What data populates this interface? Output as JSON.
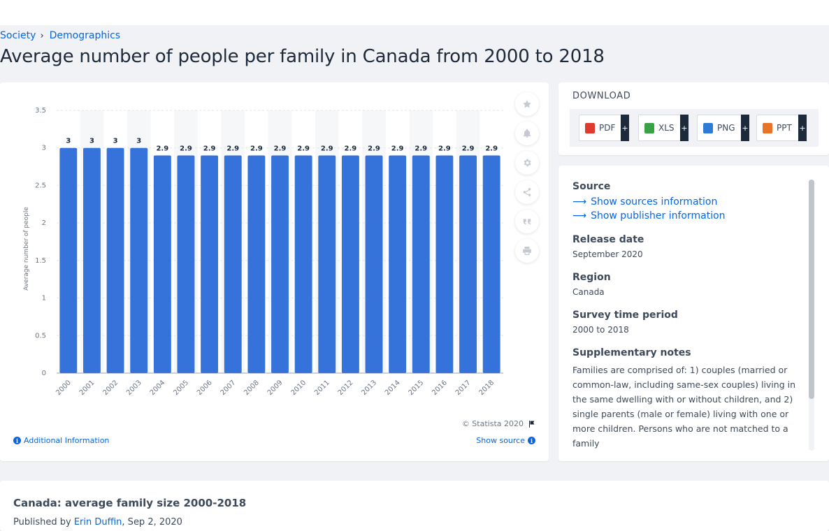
{
  "breadcrumb": {
    "items": [
      "Society",
      "Demographics"
    ]
  },
  "page_title": "Average number of people per family in Canada from 2000 to 2018",
  "chart_data": {
    "type": "bar",
    "title": "",
    "xlabel": "",
    "ylabel": "Average number of people",
    "ylim": [
      0,
      3.5
    ],
    "yticks": [
      "0",
      "0.5",
      "1",
      "1.5",
      "2",
      "2.5",
      "3",
      "3.5"
    ],
    "categories": [
      "2000",
      "2001",
      "2002",
      "2003",
      "2004",
      "2005",
      "2006",
      "2007",
      "2008",
      "2009",
      "2010",
      "2011",
      "2012",
      "2013",
      "2014",
      "2015",
      "2016",
      "2017",
      "2018"
    ],
    "values": [
      3,
      3,
      3,
      3,
      2.9,
      2.9,
      2.9,
      2.9,
      2.9,
      2.9,
      2.9,
      2.9,
      2.9,
      2.9,
      2.9,
      2.9,
      2.9,
      2.9,
      2.9
    ],
    "data_labels": [
      "3",
      "3",
      "3",
      "3",
      "2.9",
      "2.9",
      "2.9",
      "2.9",
      "2.9",
      "2.9",
      "2.9",
      "2.9",
      "2.9",
      "2.9",
      "2.9",
      "2.9",
      "2.9",
      "2.9",
      "2.9"
    ],
    "grid": true,
    "bar_color": "#3572d9"
  },
  "chart_footer": {
    "copyright": "© Statista 2020",
    "additional_info": "Additional Information",
    "show_source": "Show source"
  },
  "tools": {
    "icons": [
      "star-icon",
      "bell-icon",
      "gear-icon",
      "share-icon",
      "quote-icon",
      "print-icon"
    ]
  },
  "download": {
    "title": "DOWNLOAD",
    "buttons": [
      {
        "label": "PDF",
        "color": "#e0392f"
      },
      {
        "label": "XLS",
        "color": "#3aa245"
      },
      {
        "label": "PNG",
        "color": "#2e7bd6"
      },
      {
        "label": "PPT",
        "color": "#e8742a"
      }
    ],
    "plus": "+"
  },
  "meta": {
    "source_label": "Source",
    "show_sources": "Show sources information",
    "show_publisher": "Show publisher information",
    "release_label": "Release date",
    "release_value": "September 2020",
    "region_label": "Region",
    "region_value": "Canada",
    "period_label": "Survey time period",
    "period_value": "2000 to 2018",
    "notes_label": "Supplementary notes",
    "notes_value": "Families are comprised of: 1) couples (married or common-law, including same-sex couples) living in the same dwelling with or without children, and 2) single parents (male or female) living with one or more children. Persons who are not matched to a family"
  },
  "bottom": {
    "title": "Canada: average family size 2000-2018",
    "published_prefix": "Published by",
    "author": "Erin Duffin",
    "date": ", Sep 2, 2020"
  }
}
